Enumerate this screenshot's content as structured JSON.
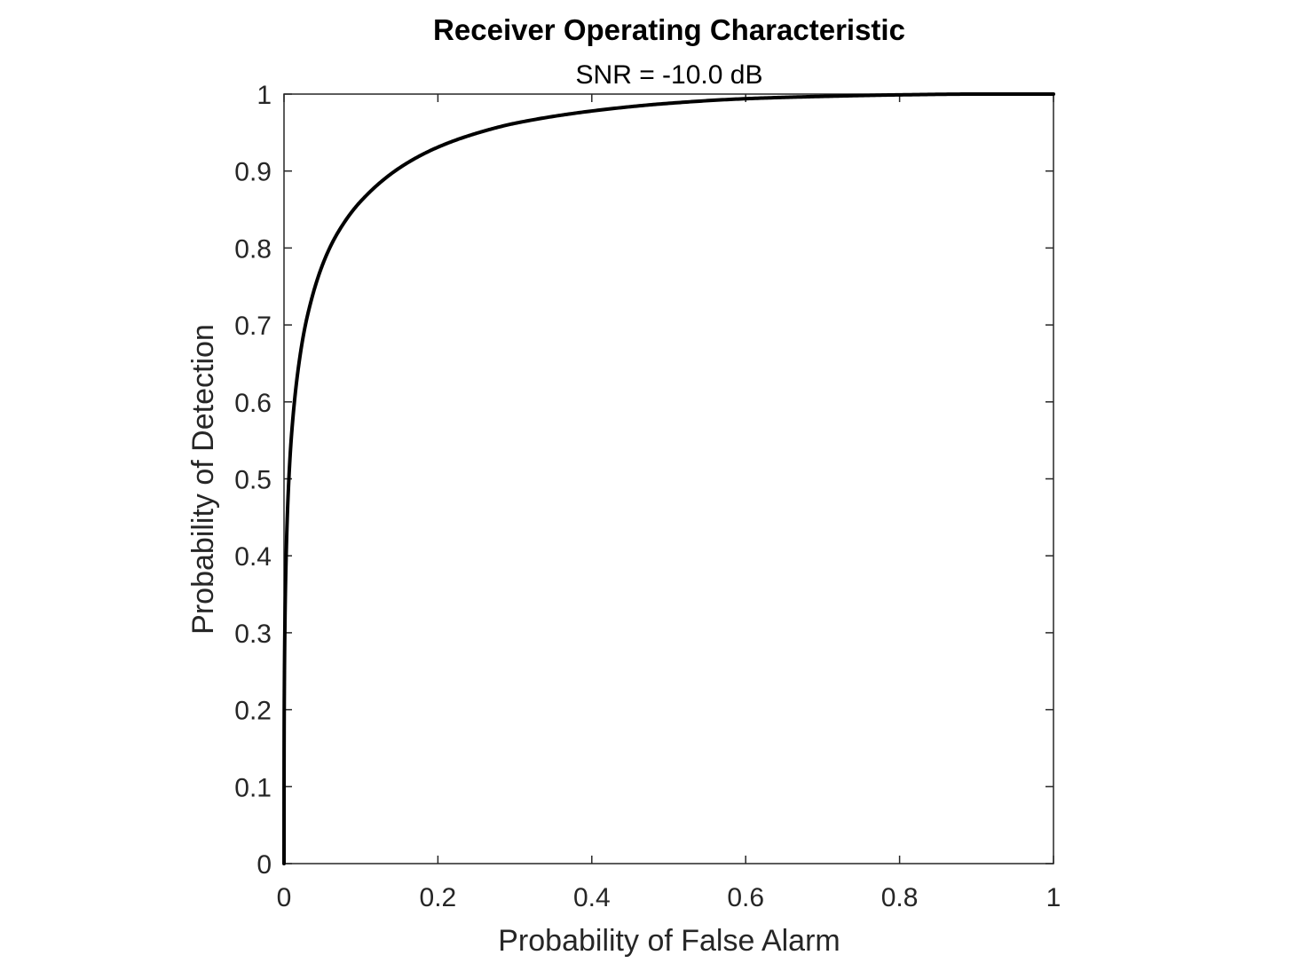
{
  "chart_data": {
    "type": "line",
    "title": "Receiver Operating Characteristic",
    "subtitle": "SNR = -10.0 dB",
    "xlabel": "Probability of False Alarm",
    "ylabel": "Probability of Detection",
    "xlim": [
      0,
      1
    ],
    "ylim": [
      0,
      1
    ],
    "x_ticks": [
      0,
      0.2,
      0.4,
      0.6,
      0.8,
      1
    ],
    "x_tick_labels": [
      "0",
      "0.2",
      "0.4",
      "0.6",
      "0.8",
      "1"
    ],
    "y_ticks": [
      0,
      0.1,
      0.2,
      0.3,
      0.4,
      0.5,
      0.6,
      0.7,
      0.8,
      0.9,
      1
    ],
    "y_tick_labels": [
      "0",
      "0.1",
      "0.2",
      "0.3",
      "0.4",
      "0.5",
      "0.6",
      "0.7",
      "0.8",
      "0.9",
      "1"
    ],
    "grid": false,
    "series": [
      {
        "color": "#000000",
        "x": [
          0,
          0.0001,
          0.0005,
          0.001,
          0.002,
          0.005,
          0.01,
          0.02,
          0.03,
          0.05,
          0.07,
          0.1,
          0.15,
          0.2,
          0.25,
          0.3,
          0.4,
          0.5,
          0.6,
          0.7,
          0.8,
          0.9,
          1
        ],
        "y": [
          0,
          0.135,
          0.236,
          0.295,
          0.363,
          0.47,
          0.56,
          0.654,
          0.71,
          0.778,
          0.82,
          0.861,
          0.904,
          0.931,
          0.949,
          0.962,
          0.978,
          0.988,
          0.994,
          0.997,
          0.999,
          1.0,
          1.0
        ]
      }
    ],
    "axes_color": "#262626"
  }
}
